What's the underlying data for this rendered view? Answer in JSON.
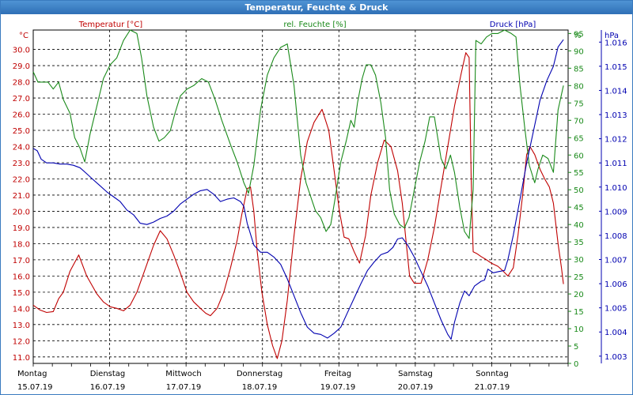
{
  "window": {
    "title": "Temperatur, Feuchte & Druck"
  },
  "colors": {
    "temperature": "#c00000",
    "humidity": "#1a8a1a",
    "pressure": "#0000b0",
    "title_bar": "#3a7bbf"
  },
  "chart_data": {
    "type": "line",
    "title": "Temperatur, Feuchte & Druck",
    "grid": true,
    "x_days": [
      {
        "name": "Montag",
        "date": "15.07.19"
      },
      {
        "name": "Dienstag",
        "date": "16.07.19"
      },
      {
        "name": "Mittwoch",
        "date": "17.07.19"
      },
      {
        "name": "Donnerstag",
        "date": "18.07.19"
      },
      {
        "name": "Freitag",
        "date": "19.07.19"
      },
      {
        "name": "Samstag",
        "date": "20.07.19"
      },
      {
        "name": "Sonntag",
        "date": "21.07.19"
      }
    ],
    "x_range_days": [
      0,
      7
    ],
    "axes": {
      "left": {
        "label": "°C",
        "range": [
          10.6,
          31.2
        ],
        "ticks": [
          "11.0",
          "12.0",
          "13.0",
          "14.0",
          "15.0",
          "16.0",
          "17.0",
          "18.0",
          "19.0",
          "20.0",
          "21.0",
          "22.0",
          "23.0",
          "24.0",
          "25.0",
          "26.0",
          "27.0",
          "28.0",
          "29.0",
          "30.0"
        ]
      },
      "right1": {
        "label": "%",
        "range": [
          0,
          96
        ],
        "ticks": [
          "0",
          "5",
          "10",
          "15",
          "20",
          "25",
          "30",
          "35",
          "40",
          "45",
          "50",
          "55",
          "60",
          "65",
          "70",
          "75",
          "80",
          "85",
          "90",
          "95"
        ]
      },
      "right2": {
        "label": "hPa",
        "range": [
          1002.7,
          1016.5
        ],
        "ticks": [
          "1.003",
          "1.004",
          "1.005",
          "1.006",
          "1.007",
          "1.008",
          "1.009",
          "1.010",
          "1.011",
          "1.012",
          "1.013",
          "1.014",
          "1.015",
          "1.016"
        ]
      }
    },
    "series": [
      {
        "name": "Temperatur [°C]",
        "axis": "left",
        "points": [
          [
            0,
            14.2
          ],
          [
            0.1,
            13.9
          ],
          [
            0.2,
            13.75
          ],
          [
            0.3,
            13.8
          ],
          [
            0.38,
            14.6
          ],
          [
            0.45,
            15.0
          ],
          [
            0.55,
            16.3
          ],
          [
            0.68,
            17.3
          ],
          [
            0.8,
            16.0
          ],
          [
            0.95,
            14.9
          ],
          [
            1.05,
            14.4
          ],
          [
            1.15,
            14.1
          ],
          [
            1.25,
            14.0
          ],
          [
            1.35,
            13.85
          ],
          [
            1.45,
            14.2
          ],
          [
            1.55,
            15.0
          ],
          [
            1.68,
            16.5
          ],
          [
            1.8,
            17.9
          ],
          [
            1.9,
            18.8
          ],
          [
            2.0,
            18.3
          ],
          [
            2.1,
            17.3
          ],
          [
            2.2,
            16.2
          ],
          [
            2.3,
            15.0
          ],
          [
            2.4,
            14.4
          ],
          [
            2.5,
            14.0
          ],
          [
            2.58,
            13.7
          ],
          [
            2.65,
            13.55
          ],
          [
            2.75,
            14.0
          ],
          [
            2.85,
            15.0
          ],
          [
            2.95,
            16.5
          ],
          [
            3.05,
            18.2
          ],
          [
            3.12,
            19.8
          ],
          [
            3.2,
            21.4
          ],
          [
            3.25,
            21.5
          ],
          [
            3.3,
            20.0
          ],
          [
            3.35,
            17.5
          ],
          [
            3.42,
            15.0
          ],
          [
            3.5,
            13.0
          ],
          [
            3.58,
            11.7
          ],
          [
            3.65,
            10.9
          ],
          [
            3.72,
            12.0
          ],
          [
            3.8,
            14.5
          ],
          [
            3.9,
            18.5
          ],
          [
            4.0,
            22.0
          ],
          [
            4.1,
            24.3
          ],
          [
            4.2,
            25.5
          ],
          [
            4.32,
            26.3
          ],
          [
            4.42,
            25.0
          ],
          [
            4.5,
            22.5
          ],
          [
            4.58,
            20.0
          ],
          [
            4.65,
            18.4
          ],
          [
            4.72,
            18.3
          ],
          [
            4.8,
            17.5
          ],
          [
            4.88,
            16.8
          ],
          [
            4.97,
            18.5
          ],
          [
            5.05,
            21.0
          ],
          [
            5.15,
            23.0
          ],
          [
            5.25,
            24.4
          ],
          [
            5.35,
            24.0
          ],
          [
            5.45,
            22.5
          ],
          [
            5.52,
            20.5
          ],
          [
            5.58,
            18.0
          ],
          [
            5.63,
            16.0
          ],
          [
            5.7,
            15.55
          ],
          [
            5.8,
            15.55
          ],
          [
            5.9,
            17.0
          ],
          [
            6.0,
            19.0
          ],
          [
            6.1,
            21.5
          ],
          [
            6.2,
            24.0
          ],
          [
            6.3,
            26.5
          ],
          [
            6.4,
            28.5
          ],
          [
            6.47,
            29.8
          ],
          [
            6.52,
            29.5
          ],
          [
            6.55,
            22.0
          ],
          [
            6.58,
            17.5
          ],
          [
            6.63,
            17.4
          ],
          [
            6.7,
            17.2
          ],
          [
            6.78,
            17.0
          ],
          [
            6.85,
            16.8
          ],
          [
            6.95,
            16.6
          ],
          [
            7.03,
            16.3
          ],
          [
            7.1,
            16.0
          ],
          [
            7.18,
            16.5
          ],
          [
            7.25,
            18.5
          ],
          [
            7.32,
            21.0
          ],
          [
            7.38,
            23.5
          ],
          [
            7.43,
            24.0
          ],
          [
            7.5,
            23.5
          ],
          [
            7.58,
            22.6
          ],
          [
            7.65,
            22.0
          ],
          [
            7.72,
            21.5
          ],
          [
            7.78,
            20.5
          ],
          [
            7.85,
            18.0
          ],
          [
            7.9,
            16.5
          ],
          [
            7.93,
            15.5
          ]
        ]
      },
      {
        "name": "rel. Feuchte [%]",
        "axis": "right1",
        "points": [
          [
            0,
            84
          ],
          [
            0.07,
            81
          ],
          [
            0.15,
            81
          ],
          [
            0.22,
            81
          ],
          [
            0.3,
            79
          ],
          [
            0.38,
            81
          ],
          [
            0.45,
            76
          ],
          [
            0.55,
            72
          ],
          [
            0.62,
            65
          ],
          [
            0.7,
            62
          ],
          [
            0.77,
            58
          ],
          [
            0.85,
            66
          ],
          [
            0.95,
            74
          ],
          [
            1.05,
            82
          ],
          [
            1.15,
            86
          ],
          [
            1.25,
            88
          ],
          [
            1.35,
            93
          ],
          [
            1.45,
            96
          ],
          [
            1.55,
            95
          ],
          [
            1.62,
            88
          ],
          [
            1.7,
            77
          ],
          [
            1.8,
            68
          ],
          [
            1.88,
            64
          ],
          [
            1.96,
            65
          ],
          [
            2.05,
            67
          ],
          [
            2.12,
            72
          ],
          [
            2.2,
            77
          ],
          [
            2.3,
            79
          ],
          [
            2.4,
            80
          ],
          [
            2.52,
            82
          ],
          [
            2.62,
            81
          ],
          [
            2.72,
            76
          ],
          [
            2.82,
            70
          ],
          [
            2.95,
            63
          ],
          [
            3.05,
            58
          ],
          [
            3.15,
            52
          ],
          [
            3.22,
            49
          ],
          [
            3.3,
            57
          ],
          [
            3.4,
            73
          ],
          [
            3.5,
            83
          ],
          [
            3.6,
            88
          ],
          [
            3.7,
            91
          ],
          [
            3.8,
            92
          ],
          [
            3.9,
            80
          ],
          [
            4.0,
            60
          ],
          [
            4.08,
            52
          ],
          [
            4.15,
            48
          ],
          [
            4.22,
            44
          ],
          [
            4.3,
            42
          ],
          [
            4.38,
            38
          ],
          [
            4.45,
            40
          ],
          [
            4.52,
            48
          ],
          [
            4.6,
            58
          ],
          [
            4.68,
            64
          ],
          [
            4.75,
            70
          ],
          [
            4.8,
            68
          ],
          [
            4.85,
            75
          ],
          [
            4.92,
            82
          ],
          [
            4.98,
            86
          ],
          [
            5.05,
            86
          ],
          [
            5.12,
            83
          ],
          [
            5.2,
            75
          ],
          [
            5.27,
            65
          ],
          [
            5.33,
            50
          ],
          [
            5.4,
            43
          ],
          [
            5.48,
            40
          ],
          [
            5.55,
            39
          ],
          [
            5.62,
            42
          ],
          [
            5.7,
            50
          ],
          [
            5.78,
            58
          ],
          [
            5.86,
            64
          ],
          [
            5.93,
            71
          ],
          [
            6.0,
            71
          ],
          [
            6.05,
            65
          ],
          [
            6.1,
            59
          ],
          [
            6.17,
            56
          ],
          [
            6.24,
            60
          ],
          [
            6.3,
            55
          ],
          [
            6.38,
            45
          ],
          [
            6.45,
            38
          ],
          [
            6.52,
            36
          ],
          [
            6.58,
            50
          ],
          [
            6.62,
            93
          ],
          [
            6.7,
            92
          ],
          [
            6.78,
            94
          ],
          [
            6.86,
            95
          ],
          [
            6.95,
            95
          ],
          [
            7.05,
            96
          ],
          [
            7.15,
            95
          ],
          [
            7.22,
            94
          ],
          [
            7.28,
            80
          ],
          [
            7.35,
            68
          ],
          [
            7.42,
            57
          ],
          [
            7.5,
            52
          ],
          [
            7.55,
            56
          ],
          [
            7.62,
            60
          ],
          [
            7.7,
            59
          ],
          [
            7.78,
            55
          ],
          [
            7.85,
            73
          ],
          [
            7.93,
            80
          ]
        ]
      },
      {
        "name": "Druck [hPa]",
        "axis": "right2",
        "points": [
          [
            0,
            1011.6
          ],
          [
            0.06,
            1011.5
          ],
          [
            0.12,
            1011.15
          ],
          [
            0.2,
            1011.0
          ],
          [
            0.3,
            1011.0
          ],
          [
            0.4,
            1010.95
          ],
          [
            0.5,
            1010.95
          ],
          [
            0.6,
            1010.9
          ],
          [
            0.7,
            1010.8
          ],
          [
            0.8,
            1010.55
          ],
          [
            0.9,
            1010.3
          ],
          [
            1.0,
            1010.05
          ],
          [
            1.1,
            1009.8
          ],
          [
            1.2,
            1009.6
          ],
          [
            1.3,
            1009.4
          ],
          [
            1.4,
            1009.05
          ],
          [
            1.5,
            1008.85
          ],
          [
            1.6,
            1008.5
          ],
          [
            1.7,
            1008.45
          ],
          [
            1.8,
            1008.55
          ],
          [
            1.9,
            1008.7
          ],
          [
            2.0,
            1008.8
          ],
          [
            2.1,
            1009.0
          ],
          [
            2.2,
            1009.3
          ],
          [
            2.3,
            1009.5
          ],
          [
            2.4,
            1009.7
          ],
          [
            2.5,
            1009.85
          ],
          [
            2.6,
            1009.9
          ],
          [
            2.7,
            1009.7
          ],
          [
            2.8,
            1009.4
          ],
          [
            2.9,
            1009.5
          ],
          [
            3.0,
            1009.55
          ],
          [
            3.1,
            1009.4
          ],
          [
            3.15,
            1009.2
          ],
          [
            3.2,
            1008.5
          ],
          [
            3.3,
            1007.6
          ],
          [
            3.4,
            1007.3
          ],
          [
            3.5,
            1007.3
          ],
          [
            3.6,
            1007.1
          ],
          [
            3.7,
            1006.8
          ],
          [
            3.8,
            1006.2
          ],
          [
            3.9,
            1005.5
          ],
          [
            4.0,
            1004.8
          ],
          [
            4.1,
            1004.2
          ],
          [
            4.2,
            1003.95
          ],
          [
            4.3,
            1003.9
          ],
          [
            4.4,
            1003.75
          ],
          [
            4.5,
            1003.95
          ],
          [
            4.6,
            1004.2
          ],
          [
            4.7,
            1004.8
          ],
          [
            4.8,
            1005.4
          ],
          [
            4.9,
            1006.0
          ],
          [
            5.0,
            1006.55
          ],
          [
            5.1,
            1006.9
          ],
          [
            5.2,
            1007.2
          ],
          [
            5.3,
            1007.3
          ],
          [
            5.38,
            1007.5
          ],
          [
            5.45,
            1007.85
          ],
          [
            5.52,
            1007.9
          ],
          [
            5.6,
            1007.6
          ],
          [
            5.7,
            1007.1
          ],
          [
            5.8,
            1006.5
          ],
          [
            5.9,
            1005.9
          ],
          [
            6.0,
            1005.2
          ],
          [
            6.1,
            1004.5
          ],
          [
            6.2,
            1003.9
          ],
          [
            6.25,
            1003.7
          ],
          [
            6.3,
            1004.4
          ],
          [
            6.38,
            1005.2
          ],
          [
            6.45,
            1005.7
          ],
          [
            6.52,
            1005.5
          ],
          [
            6.6,
            1005.9
          ],
          [
            6.7,
            1006.1
          ],
          [
            6.75,
            1006.15
          ],
          [
            6.8,
            1006.6
          ],
          [
            6.88,
            1006.45
          ],
          [
            6.96,
            1006.5
          ],
          [
            7.05,
            1006.55
          ],
          [
            7.1,
            1007.0
          ],
          [
            7.18,
            1008.0
          ],
          [
            7.28,
            1009.5
          ],
          [
            7.38,
            1011.0
          ],
          [
            7.48,
            1012.3
          ],
          [
            7.58,
            1013.6
          ],
          [
            7.68,
            1014.4
          ],
          [
            7.78,
            1015.0
          ],
          [
            7.85,
            1015.8
          ],
          [
            7.93,
            1016.1
          ]
        ]
      }
    ],
    "headers": {
      "temperature": "Temperatur [°C]",
      "humidity": "rel. Feuchte [%]",
      "pressure": "Druck [hPa]"
    }
  }
}
